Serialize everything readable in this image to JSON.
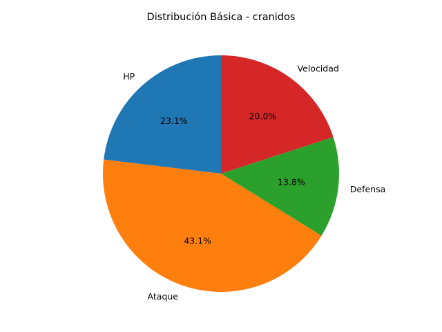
{
  "chart_data": {
    "type": "pie",
    "title": "Distribución Básica - cranidos",
    "categories": [
      "HP",
      "Ataque",
      "Defensa",
      "Velocidad"
    ],
    "values": [
      67,
      125,
      40,
      58
    ],
    "percent_labels": [
      "23.1%",
      "43.1%",
      "13.8%",
      "20.0%"
    ],
    "colors": [
      "#1f77b4",
      "#ff7f0e",
      "#2ca02c",
      "#d62728"
    ],
    "start_angle": 90,
    "direction": "counterclockwise",
    "legend": "none"
  }
}
